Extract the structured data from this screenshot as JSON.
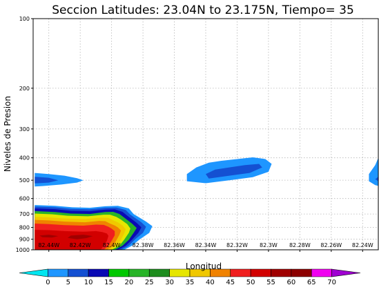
{
  "chart_data": {
    "type": "heatmap",
    "title": "Seccion Latitudes: 23.04N to 23.175N, Tiempo= 35",
    "xlabel": "Longitud",
    "ylabel": "Niveles de Presion",
    "x_ticks": [
      "82.44W",
      "82.42W",
      "82.4W",
      "82.38W",
      "82.36W",
      "82.34W",
      "82.32W",
      "82.3W",
      "82.28W",
      "82.26W",
      "82.24W"
    ],
    "x_tick_values": [
      -82.44,
      -82.42,
      -82.4,
      -82.38,
      -82.36,
      -82.34,
      -82.32,
      -82.3,
      -82.28,
      -82.26,
      -82.24
    ],
    "xlim": [
      -82.45,
      -82.23
    ],
    "y_ticks": [
      "100",
      "200",
      "300",
      "400",
      "500",
      "600",
      "700",
      "800",
      "900",
      "1000"
    ],
    "y_tick_values": [
      100,
      200,
      300,
      400,
      500,
      600,
      700,
      800,
      900,
      1000
    ],
    "ylim": [
      1000,
      100
    ],
    "y_scale": "log",
    "grid": true,
    "colorbar": {
      "levels": [
        "0",
        "5",
        "10",
        "15",
        "20",
        "25",
        "30",
        "35",
        "40",
        "45",
        "50",
        "55",
        "60",
        "65",
        "70"
      ],
      "colors": [
        "#00e6f0",
        "#1e96ff",
        "#1450d2",
        "#0a0ab4",
        "#00c800",
        "#28b428",
        "#1e8c1e",
        "#e6e600",
        "#f0c800",
        "#f08200",
        "#f01e1e",
        "#d20000",
        "#a00000",
        "#8c0000",
        "#f000f0",
        "#a000d2"
      ]
    },
    "features": [
      {
        "name": "cloud-west-500",
        "shells": [
          {
            "level": "0",
            "points": [
              [
                -82.449,
                465
              ],
              [
                -82.44,
                470
              ],
              [
                -82.43,
                478
              ],
              [
                -82.422,
                490
              ],
              [
                -82.418,
                500
              ],
              [
                -82.422,
                512
              ],
              [
                -82.432,
                522
              ],
              [
                -82.444,
                530
              ],
              [
                -82.449,
                532
              ]
            ]
          },
          {
            "level": "5",
            "points": [
              [
                -82.449,
                483
              ],
              [
                -82.44,
                488
              ],
              [
                -82.434,
                500
              ],
              [
                -82.44,
                512
              ],
              [
                -82.449,
                516
              ]
            ]
          }
        ]
      },
      {
        "name": "cloud-central-450",
        "shells": [
          {
            "level": "0",
            "points": [
              [
                -82.352,
                470
              ],
              [
                -82.346,
                440
              ],
              [
                -82.338,
                420
              ],
              [
                -82.33,
                412
              ],
              [
                -82.32,
                405
              ],
              [
                -82.31,
                398
              ],
              [
                -82.302,
                405
              ],
              [
                -82.298,
                425
              ],
              [
                -82.3,
                460
              ],
              [
                -82.31,
                485
              ],
              [
                -82.325,
                500
              ],
              [
                -82.34,
                515
              ],
              [
                -82.352,
                505
              ]
            ]
          },
          {
            "level": "5",
            "points": [
              [
                -82.34,
                470
              ],
              [
                -82.334,
                450
              ],
              [
                -82.325,
                440
              ],
              [
                -82.315,
                430
              ],
              [
                -82.306,
                425
              ],
              [
                -82.304,
                440
              ],
              [
                -82.312,
                465
              ],
              [
                -82.325,
                478
              ],
              [
                -82.338,
                492
              ]
            ]
          }
        ]
      },
      {
        "name": "cloud-east-470",
        "shells": [
          {
            "level": "0",
            "points": [
              [
                -82.23,
                400
              ],
              [
                -82.22,
                395
              ],
              [
                -82.215,
                400
              ],
              [
                -82.215,
                545
              ],
              [
                -82.224,
                540
              ],
              [
                -82.232,
                525
              ],
              [
                -82.236,
                505
              ],
              [
                -82.236,
                470
              ],
              [
                -82.232,
                430
              ]
            ]
          },
          {
            "level": "5",
            "points": [
              [
                -82.228,
                470
              ],
              [
                -82.215,
                460
              ],
              [
                -82.215,
                525
              ],
              [
                -82.228,
                515
              ],
              [
                -82.232,
                495
              ]
            ]
          }
        ]
      },
      {
        "name": "convective-core",
        "shells": [
          {
            "level": "0",
            "points": [
              [
                -82.449,
                640
              ],
              [
                -82.436,
                645
              ],
              [
                -82.425,
                655
              ],
              [
                -82.414,
                658
              ],
              [
                -82.404,
                648
              ],
              [
                -82.396,
                645
              ],
              [
                -82.389,
                662
              ],
              [
                -82.386,
                700
              ],
              [
                -82.378,
                755
              ],
              [
                -82.374,
                790
              ],
              [
                -82.376,
                845
              ],
              [
                -82.382,
                900
              ],
              [
                -82.387,
                960
              ],
              [
                -82.392,
                1000
              ],
              [
                -82.449,
                1000
              ]
            ]
          },
          {
            "level": "5",
            "points": [
              [
                -82.449,
                650
              ],
              [
                -82.436,
                655
              ],
              [
                -82.426,
                665
              ],
              [
                -82.414,
                668
              ],
              [
                -82.404,
                658
              ],
              [
                -82.397,
                656
              ],
              [
                -82.391,
                672
              ],
              [
                -82.388,
                705
              ],
              [
                -82.381,
                760
              ],
              [
                -82.378,
                795
              ],
              [
                -82.38,
                845
              ],
              [
                -82.385,
                900
              ],
              [
                -82.389,
                960
              ],
              [
                -82.394,
                1000
              ],
              [
                -82.449,
                1000
              ]
            ]
          },
          {
            "level": "10",
            "points": [
              [
                -82.449,
                662
              ],
              [
                -82.436,
                667
              ],
              [
                -82.426,
                678
              ],
              [
                -82.414,
                681
              ],
              [
                -82.404,
                670
              ],
              [
                -82.398,
                668
              ],
              [
                -82.393,
                685
              ],
              [
                -82.39,
                712
              ],
              [
                -82.384,
                765
              ],
              [
                -82.381,
                800
              ],
              [
                -82.383,
                845
              ],
              [
                -82.387,
                905
              ],
              [
                -82.391,
                960
              ],
              [
                -82.396,
                1000
              ],
              [
                -82.449,
                1000
              ]
            ]
          },
          {
            "level": "20",
            "points": [
              [
                -82.449,
                680
              ],
              [
                -82.436,
                686
              ],
              [
                -82.426,
                697
              ],
              [
                -82.414,
                700
              ],
              [
                -82.404,
                686
              ],
              [
                -82.399,
                685
              ],
              [
                -82.395,
                700
              ],
              [
                -82.392,
                725
              ],
              [
                -82.387,
                770
              ],
              [
                -82.384,
                805
              ],
              [
                -82.386,
                845
              ],
              [
                -82.389,
                905
              ],
              [
                -82.393,
                960
              ],
              [
                -82.398,
                1000
              ],
              [
                -82.449,
                1000
              ]
            ]
          },
          {
            "level": "30",
            "points": [
              [
                -82.449,
                697
              ],
              [
                -82.438,
                702
              ],
              [
                -82.428,
                712
              ],
              [
                -82.415,
                716
              ],
              [
                -82.405,
                705
              ],
              [
                -82.401,
                705
              ],
              [
                -82.397,
                720
              ],
              [
                -82.394,
                740
              ],
              [
                -82.39,
                775
              ],
              [
                -82.388,
                810
              ],
              [
                -82.389,
                845
              ],
              [
                -82.392,
                905
              ],
              [
                -82.395,
                960
              ],
              [
                -82.4,
                1000
              ],
              [
                -82.449,
                1000
              ]
            ]
          },
          {
            "level": "35",
            "points": [
              [
                -82.449,
                720
              ],
              [
                -82.44,
                724
              ],
              [
                -82.43,
                732
              ],
              [
                -82.417,
                736
              ],
              [
                -82.407,
                726
              ],
              [
                -82.402,
                728
              ],
              [
                -82.399,
                745
              ],
              [
                -82.396,
                760
              ],
              [
                -82.393,
                785
              ],
              [
                -82.391,
                815
              ],
              [
                -82.392,
                850
              ],
              [
                -82.394,
                905
              ],
              [
                -82.397,
                960
              ],
              [
                -82.401,
                1000
              ],
              [
                -82.449,
                1000
              ]
            ]
          },
          {
            "level": "40",
            "points": [
              [
                -82.449,
                742
              ],
              [
                -82.44,
                746
              ],
              [
                -82.43,
                755
              ],
              [
                -82.417,
                760
              ],
              [
                -82.408,
                750
              ],
              [
                -82.404,
                752
              ],
              [
                -82.401,
                770
              ],
              [
                -82.398,
                785
              ],
              [
                -82.396,
                800
              ],
              [
                -82.394,
                825
              ],
              [
                -82.395,
                860
              ],
              [
                -82.397,
                910
              ],
              [
                -82.399,
                960
              ],
              [
                -82.403,
                1000
              ],
              [
                -82.449,
                1000
              ]
            ]
          },
          {
            "level": "45",
            "points": [
              [
                -82.449,
                770
              ],
              [
                -82.44,
                774
              ],
              [
                -82.43,
                782
              ],
              [
                -82.418,
                786
              ],
              [
                -82.41,
                778
              ],
              [
                -82.405,
                780
              ],
              [
                -82.402,
                795
              ],
              [
                -82.4,
                810
              ],
              [
                -82.398,
                830
              ],
              [
                -82.398,
                865
              ],
              [
                -82.4,
                915
              ],
              [
                -82.402,
                960
              ],
              [
                -82.405,
                1000
              ],
              [
                -82.449,
                1000
              ]
            ]
          },
          {
            "level": "50",
            "points": [
              [
                -82.449,
                820
              ],
              [
                -82.44,
                822
              ],
              [
                -82.43,
                830
              ],
              [
                -82.418,
                835
              ],
              [
                -82.41,
                830
              ],
              [
                -82.406,
                838
              ],
              [
                -82.403,
                850
              ],
              [
                -82.402,
                870
              ],
              [
                -82.403,
                915
              ],
              [
                -82.405,
                960
              ],
              [
                -82.407,
                1000
              ],
              [
                -82.449,
                1000
              ]
            ]
          },
          {
            "level": "55",
            "points": [
              [
                -82.44,
                860
              ],
              [
                -82.434,
                872
              ],
              [
                -82.438,
                885
              ],
              [
                -82.444,
                882
              ],
              [
                -82.446,
                868
              ]
            ]
          },
          {
            "level": "55",
            "points": [
              [
                -82.418,
                860
              ],
              [
                -82.412,
                872
              ],
              [
                -82.416,
                890
              ],
              [
                -82.422,
                900
              ],
              [
                -82.428,
                888
              ],
              [
                -82.426,
                868
              ]
            ]
          }
        ]
      }
    ]
  }
}
